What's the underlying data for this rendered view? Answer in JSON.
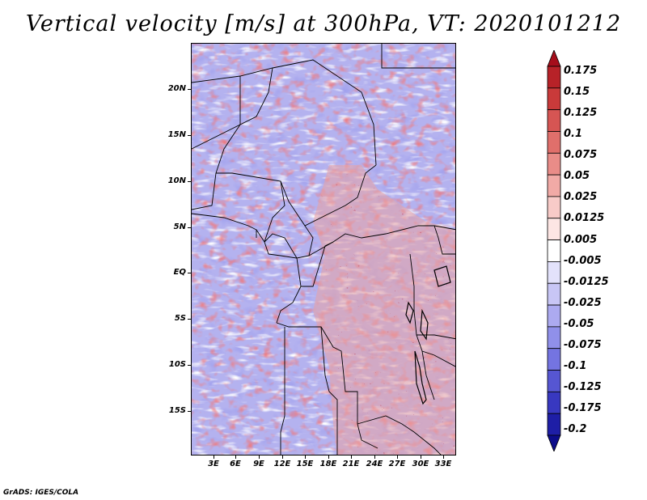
{
  "title": "Vertical velocity [m/s] at 300hPa, VT: 2020101212",
  "map": {
    "region": "Central Africa",
    "lat_labels": [
      "20N",
      "15N",
      "10N",
      "5N",
      "EQ",
      "5S",
      "10S",
      "15S"
    ],
    "lon_labels": [
      "3E",
      "6E",
      "9E",
      "12E",
      "15E",
      "18E",
      "21E",
      "24E",
      "27E",
      "30E",
      "33E"
    ]
  },
  "colorbar": {
    "labels": [
      "0.175",
      "0.15",
      "0.125",
      "0.1",
      "0.075",
      "0.05",
      "0.025",
      "0.0125",
      "0.005",
      "-0.005",
      "-0.0125",
      "-0.025",
      "-0.05",
      "-0.075",
      "-0.1",
      "-0.125",
      "-0.175",
      "-0.2"
    ],
    "colors": [
      "#a50e1b",
      "#b72228",
      "#c93a3a",
      "#d65553",
      "#e06f6b",
      "#e98c88",
      "#f1aaa6",
      "#f8cbc8",
      "#fde6e4",
      "#ffffff",
      "#e3e2fb",
      "#c8c6f5",
      "#acaaf0",
      "#9090ea",
      "#7474e1",
      "#5656d2",
      "#3838c0",
      "#1e1ea6",
      "#0c0c8a"
    ]
  },
  "footer": "GrADS: IGES/COLA"
}
